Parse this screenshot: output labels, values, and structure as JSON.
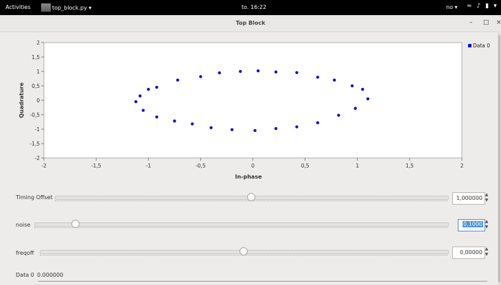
{
  "topbar": {
    "activities": "Activities",
    "app_menu": "top_block.py ▾",
    "clock": "to. 16:22",
    "lang": "no ▾",
    "wifi_icon": "wifi-icon",
    "volume_icon": "volume-icon",
    "battery_icon": "battery-icon"
  },
  "window": {
    "title": "Top Block",
    "minimize": "–",
    "maximize": "□",
    "close": "×"
  },
  "colors": {
    "points": "#0a14d0",
    "accent": "#4a90d9"
  },
  "chart_data": {
    "type": "scatter",
    "title": "",
    "xlabel": "In-phase",
    "ylabel": "Quadrature",
    "xlim": [
      -2,
      2
    ],
    "ylim": [
      -2,
      2
    ],
    "x_ticks": [
      "-2",
      "-1,5",
      "-1",
      "-0,5",
      "0",
      "0,5",
      "1",
      "1,5",
      "2"
    ],
    "y_ticks": [
      "2",
      "1,5",
      "1",
      "0,5",
      "0",
      "-0,5",
      "-1",
      "-1,5",
      "-2"
    ],
    "grid": false,
    "legend_placement": "top-right",
    "series": [
      {
        "name": "Data 0",
        "constellation": "16-point ring (PSK-like), noisy, roughly elliptical",
        "x": [
          -1.0,
          -0.92,
          -0.72,
          -0.5,
          -0.32,
          -0.12,
          0.05,
          0.22,
          0.42,
          0.62,
          0.78,
          0.95,
          1.05,
          1.1,
          0.98,
          0.82,
          0.62,
          0.42,
          0.22,
          0.02,
          -0.2,
          -0.4,
          -0.58,
          -0.75,
          -0.92,
          -1.05,
          -1.12,
          -1.08
        ],
        "y": [
          0.38,
          0.45,
          0.7,
          0.82,
          0.95,
          1.0,
          1.02,
          0.98,
          0.96,
          0.8,
          0.7,
          0.5,
          0.38,
          0.05,
          -0.28,
          -0.52,
          -0.78,
          -0.92,
          -0.98,
          -1.05,
          -1.02,
          -0.95,
          -0.82,
          -0.72,
          -0.58,
          -0.35,
          -0.05,
          0.15
        ]
      }
    ]
  },
  "controls": {
    "timing": {
      "label": "Timing Offset",
      "value": "1,000000",
      "fraction": 0.5
    },
    "noise": {
      "label": "noise",
      "value": "0,1000",
      "fraction": 0.1
    },
    "freqoff": {
      "label": "freqoff",
      "value": "0,00000",
      "fraction": 0.5
    }
  },
  "status": {
    "label": "Data 0",
    "value": "0.000000"
  }
}
